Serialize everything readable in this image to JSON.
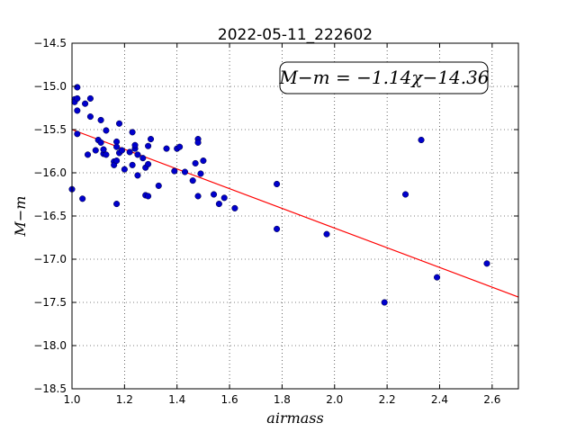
{
  "chart_data": {
    "type": "scatter",
    "title": "2022-05-11_222602",
    "xlabel": "airmass",
    "ylabel": "M−m",
    "xlim": [
      1.0,
      2.7
    ],
    "ylim": [
      -18.5,
      -14.5
    ],
    "x_ticks": [
      "1.0",
      "1.2",
      "1.4",
      "1.6",
      "1.8",
      "2.0",
      "2.2",
      "2.4",
      "2.6"
    ],
    "y_ticks": [
      "−14.5",
      "−15.0",
      "−15.5",
      "−16.0",
      "−16.5",
      "−17.0",
      "−17.5",
      "−18.0",
      "−18.5"
    ],
    "grid": true,
    "equation_label": "M−m = −1.14χ−14.36",
    "fit": {
      "slope": -1.14,
      "intercept": -14.36,
      "color": "#ff0000"
    },
    "point_color": "#0000cc",
    "points": [
      [
        1.0,
        -16.19
      ],
      [
        1.01,
        -15.15
      ],
      [
        1.01,
        -15.18
      ],
      [
        1.02,
        -15.55
      ],
      [
        1.02,
        -15.01
      ],
      [
        1.02,
        -15.28
      ],
      [
        1.02,
        -15.14
      ],
      [
        1.04,
        -16.3
      ],
      [
        1.05,
        -15.2
      ],
      [
        1.06,
        -15.79
      ],
      [
        1.07,
        -15.14
      ],
      [
        1.07,
        -15.35
      ],
      [
        1.09,
        -15.74
      ],
      [
        1.1,
        -15.62
      ],
      [
        1.11,
        -15.65
      ],
      [
        1.11,
        -15.39
      ],
      [
        1.12,
        -15.78
      ],
      [
        1.12,
        -15.73
      ],
      [
        1.13,
        -15.79
      ],
      [
        1.13,
        -15.51
      ],
      [
        1.16,
        -15.87
      ],
      [
        1.16,
        -15.91
      ],
      [
        1.17,
        -15.64
      ],
      [
        1.17,
        -15.7
      ],
      [
        1.17,
        -15.86
      ],
      [
        1.17,
        -16.36
      ],
      [
        1.18,
        -15.43
      ],
      [
        1.18,
        -15.77
      ],
      [
        1.19,
        -15.74
      ],
      [
        1.2,
        -15.96
      ],
      [
        1.22,
        -15.76
      ],
      [
        1.23,
        -15.91
      ],
      [
        1.23,
        -15.53
      ],
      [
        1.24,
        -15.72
      ],
      [
        1.24,
        -15.68
      ],
      [
        1.25,
        -15.79
      ],
      [
        1.25,
        -16.03
      ],
      [
        1.27,
        -15.83
      ],
      [
        1.28,
        -15.94
      ],
      [
        1.28,
        -16.26
      ],
      [
        1.29,
        -15.9
      ],
      [
        1.29,
        -16.27
      ],
      [
        1.29,
        -15.69
      ],
      [
        1.3,
        -15.61
      ],
      [
        1.33,
        -16.15
      ],
      [
        1.36,
        -15.72
      ],
      [
        1.39,
        -15.98
      ],
      [
        1.4,
        -15.72
      ],
      [
        1.41,
        -15.7
      ],
      [
        1.43,
        -15.99
      ],
      [
        1.46,
        -16.09
      ],
      [
        1.47,
        -15.89
      ],
      [
        1.48,
        -15.61
      ],
      [
        1.48,
        -15.65
      ],
      [
        1.48,
        -16.27
      ],
      [
        1.49,
        -16.01
      ],
      [
        1.5,
        -15.86
      ],
      [
        1.54,
        -16.25
      ],
      [
        1.56,
        -16.36
      ],
      [
        1.58,
        -16.29
      ],
      [
        1.62,
        -16.41
      ],
      [
        1.78,
        -16.13
      ],
      [
        1.78,
        -16.65
      ],
      [
        1.97,
        -16.71
      ],
      [
        2.19,
        -17.5
      ],
      [
        2.27,
        -16.25
      ],
      [
        2.33,
        -15.62
      ],
      [
        2.39,
        -17.21
      ],
      [
        2.58,
        -17.05
      ]
    ]
  }
}
